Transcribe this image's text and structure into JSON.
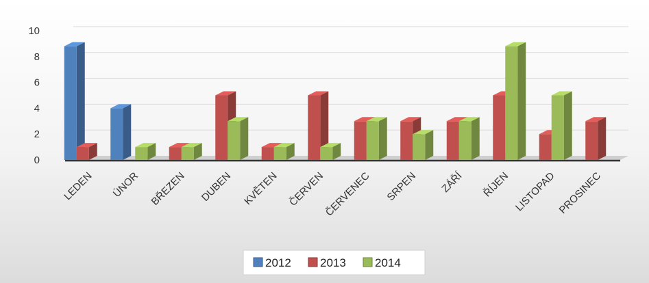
{
  "colors": {
    "2012": "#4f81bd",
    "2013": "#c0504d",
    "2014": "#9bbb59"
  },
  "chart_data": {
    "type": "bar",
    "style": "3d-clustered-column",
    "categories": [
      "LEDEN",
      "ÚNOR",
      "BŘEZEN",
      "DUBEN",
      "KVĚTEN",
      "ČERVEN",
      "ČERVENEC",
      "SRPEN",
      "ZÁŘÍ",
      "ŘÍJEN",
      "LISTOPAD",
      "PROSINEC"
    ],
    "series": [
      {
        "name": "2012",
        "values": [
          8.8,
          4,
          0,
          0,
          0,
          0,
          0,
          0,
          0,
          0,
          0,
          0
        ]
      },
      {
        "name": "2013",
        "values": [
          1,
          0,
          1,
          5,
          1,
          5,
          3,
          3,
          3,
          5,
          2,
          3
        ]
      },
      {
        "name": "2014",
        "values": [
          0,
          1,
          1,
          3,
          1,
          1,
          3,
          2,
          3,
          8.8,
          5,
          0
        ]
      }
    ],
    "yticks": [
      "0",
      "2",
      "4",
      "6",
      "8",
      "10"
    ],
    "ylim": [
      0,
      10
    ],
    "grid": true,
    "legend": "bottom",
    "title": "",
    "xlabel": "",
    "ylabel": ""
  }
}
